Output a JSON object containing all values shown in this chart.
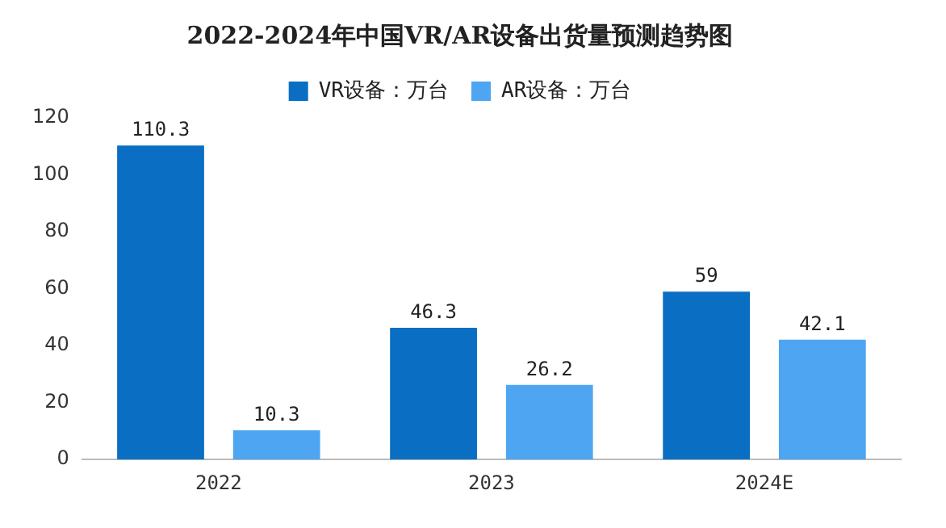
{
  "chart_data": {
    "type": "bar",
    "title": "2022-2024年中国VR/AR设备出货量预测趋势图",
    "categories": [
      "2022",
      "2023",
      "2024E"
    ],
    "series": [
      {
        "name": "VR设备：万台",
        "color": "#0a6fc2",
        "values": [
          110.3,
          46.3,
          59
        ]
      },
      {
        "name": "AR设备：万台",
        "color": "#4ea5f2",
        "values": [
          10.3,
          26.2,
          42.1
        ]
      }
    ],
    "ylim": [
      0,
      120
    ],
    "yticks": [
      0,
      20,
      40,
      60,
      80,
      100,
      120
    ],
    "grid": false,
    "legend": "top",
    "data_labels": true
  }
}
